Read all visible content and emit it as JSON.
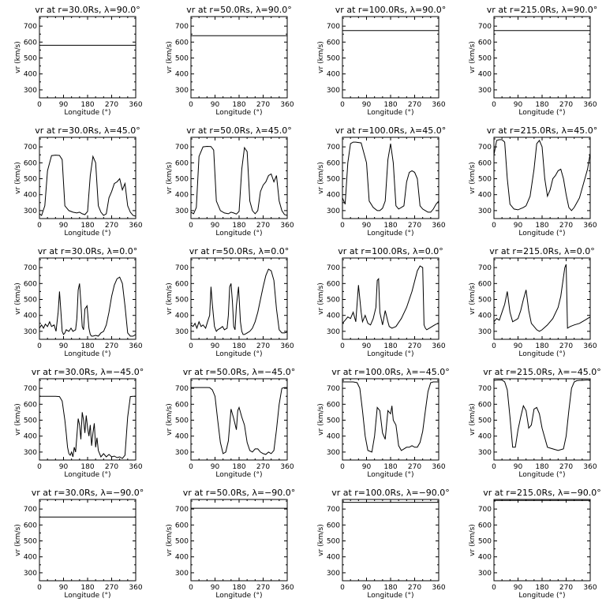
{
  "chart_data": {
    "type": "line",
    "rows": 5,
    "cols": 4,
    "xlabel": "Longitude (°)",
    "ylabel": "vr (km/s)",
    "xlim": [
      0,
      360
    ],
    "xticks": [
      0,
      90,
      180,
      270,
      360
    ],
    "ylim": [
      250,
      760
    ],
    "yticks": [
      300,
      400,
      500,
      600,
      700
    ],
    "panels": [
      {
        "title": "vr at r=30.0Rs, λ=90.0°",
        "x": [
          0,
          360
        ],
        "y": [
          580,
          580
        ]
      },
      {
        "title": "vr at r=50.0Rs, λ=90.0°",
        "x": [
          0,
          360
        ],
        "y": [
          640,
          640
        ]
      },
      {
        "title": "vr at r=100.0Rs, λ=90.0°",
        "x": [
          0,
          360
        ],
        "y": [
          672,
          672
        ]
      },
      {
        "title": "vr at r=215.0Rs, λ=90.0°",
        "x": [
          0,
          360
        ],
        "y": [
          672,
          672
        ]
      },
      {
        "title": "vr at r=30.0Rs, λ=45.0°",
        "x": [
          0,
          8,
          20,
          30,
          45,
          60,
          75,
          85,
          95,
          110,
          125,
          140,
          150,
          160,
          170,
          180,
          190,
          200,
          210,
          220,
          230,
          240,
          250,
          260,
          270,
          280,
          290,
          300,
          310,
          320,
          330,
          340,
          350,
          360
        ],
        "y": [
          280,
          270,
          330,
          550,
          645,
          648,
          646,
          620,
          330,
          300,
          290,
          285,
          290,
          280,
          275,
          295,
          520,
          640,
          600,
          330,
          290,
          270,
          280,
          380,
          420,
          470,
          480,
          500,
          430,
          470,
          330,
          290,
          270,
          265
        ]
      },
      {
        "title": "vr at r=50.0Rs, λ=45.0°",
        "x": [
          0,
          10,
          20,
          30,
          45,
          60,
          75,
          85,
          95,
          110,
          125,
          140,
          150,
          160,
          170,
          180,
          190,
          200,
          210,
          220,
          230,
          240,
          250,
          260,
          270,
          280,
          290,
          300,
          310,
          320,
          330,
          340,
          350,
          360
        ],
        "y": [
          290,
          280,
          320,
          640,
          700,
          703,
          702,
          680,
          360,
          300,
          285,
          280,
          290,
          285,
          278,
          295,
          560,
          695,
          670,
          360,
          300,
          280,
          300,
          420,
          460,
          480,
          520,
          530,
          480,
          520,
          360,
          300,
          275,
          270
        ]
      },
      {
        "title": "vr at r=100.0Rs, λ=45.0°",
        "x": [
          0,
          10,
          20,
          30,
          40,
          50,
          70,
          90,
          100,
          115,
          130,
          140,
          150,
          160,
          170,
          180,
          190,
          200,
          210,
          220,
          230,
          240,
          250,
          260,
          270,
          280,
          290,
          300,
          310,
          320,
          330,
          340,
          350,
          360
        ],
        "y": [
          380,
          340,
          600,
          720,
          730,
          730,
          725,
          600,
          360,
          320,
          300,
          300,
          315,
          360,
          620,
          720,
          600,
          330,
          310,
          320,
          330,
          480,
          540,
          550,
          540,
          500,
          330,
          310,
          300,
          290,
          290,
          310,
          340,
          360
        ]
      },
      {
        "title": "vr at r=215.0Rs, λ=45.0°",
        "x": [
          0,
          10,
          20,
          30,
          40,
          50,
          60,
          75,
          90,
          110,
          120,
          135,
          150,
          160,
          170,
          180,
          190,
          200,
          210,
          220,
          230,
          240,
          250,
          260,
          270,
          280,
          290,
          300,
          310,
          320,
          330,
          340,
          350,
          360
        ],
        "y": [
          650,
          740,
          745,
          745,
          730,
          500,
          340,
          310,
          305,
          320,
          330,
          390,
          560,
          720,
          740,
          700,
          500,
          390,
          430,
          500,
          520,
          550,
          560,
          500,
          400,
          320,
          300,
          320,
          350,
          380,
          440,
          500,
          560,
          660
        ]
      },
      {
        "title": "vr at r=30.0Rs, λ=0.0°",
        "x": [
          0,
          8,
          15,
          22,
          30,
          38,
          45,
          55,
          62,
          70,
          75,
          80,
          85,
          90,
          95,
          100,
          110,
          118,
          125,
          135,
          140,
          145,
          150,
          155,
          160,
          165,
          170,
          178,
          185,
          190,
          195,
          200,
          210,
          220,
          230,
          240,
          250,
          260,
          270,
          280,
          290,
          300,
          310,
          320,
          330,
          340,
          350,
          360
        ],
        "y": [
          320,
          340,
          320,
          345,
          330,
          360,
          330,
          340,
          300,
          420,
          550,
          430,
          300,
          280,
          290,
          310,
          300,
          320,
          300,
          310,
          380,
          560,
          600,
          480,
          330,
          310,
          440,
          460,
          320,
          280,
          270,
          270,
          275,
          270,
          290,
          300,
          340,
          420,
          520,
          590,
          630,
          640,
          600,
          460,
          290,
          270,
          270,
          280
        ]
      },
      {
        "title": "vr at r=50.0Rs, λ=0.0°",
        "x": [
          0,
          8,
          15,
          22,
          30,
          38,
          45,
          55,
          62,
          70,
          75,
          80,
          88,
          95,
          100,
          110,
          118,
          125,
          135,
          140,
          145,
          150,
          155,
          160,
          165,
          170,
          178,
          185,
          190,
          195,
          200,
          210,
          220,
          230,
          240,
          250,
          260,
          270,
          280,
          290,
          300,
          310,
          320,
          330,
          340,
          350,
          360
        ],
        "y": [
          340,
          330,
          350,
          320,
          360,
          330,
          340,
          320,
          360,
          400,
          580,
          470,
          330,
          300,
          310,
          320,
          330,
          310,
          320,
          400,
          580,
          600,
          490,
          330,
          310,
          460,
          580,
          360,
          300,
          280,
          280,
          290,
          300,
          320,
          360,
          420,
          500,
          580,
          650,
          690,
          680,
          620,
          440,
          310,
          290,
          290,
          295
        ]
      },
      {
        "title": "vr at r=100.0Rs, λ=0.0°",
        "x": [
          0,
          10,
          20,
          30,
          40,
          50,
          60,
          70,
          75,
          85,
          95,
          105,
          115,
          125,
          130,
          135,
          140,
          150,
          160,
          170,
          175,
          185,
          200,
          220,
          240,
          260,
          280,
          290,
          300,
          305,
          310,
          315,
          320,
          330,
          340,
          350,
          360
        ],
        "y": [
          350,
          370,
          390,
          380,
          420,
          360,
          590,
          420,
          360,
          400,
          350,
          340,
          380,
          450,
          620,
          630,
          420,
          340,
          430,
          360,
          330,
          320,
          330,
          380,
          450,
          550,
          680,
          710,
          700,
          340,
          320,
          310,
          315,
          325,
          335,
          345,
          350
        ]
      },
      {
        "title": "vr at r=215.0Rs, λ=0.0°",
        "x": [
          0,
          10,
          20,
          30,
          40,
          50,
          60,
          70,
          80,
          90,
          100,
          110,
          120,
          130,
          140,
          150,
          160,
          170,
          180,
          200,
          220,
          240,
          250,
          260,
          265,
          270,
          275,
          285,
          300,
          320,
          340,
          350,
          360
        ],
        "y": [
          360,
          380,
          370,
          420,
          470,
          550,
          420,
          360,
          370,
          380,
          430,
          500,
          560,
          430,
          350,
          330,
          310,
          300,
          310,
          340,
          380,
          450,
          520,
          640,
          700,
          720,
          320,
          330,
          340,
          350,
          370,
          380,
          390
        ]
      },
      {
        "title": "vr at r=30.0Rs, λ=−45.0°",
        "x": [
          0,
          20,
          40,
          60,
          75,
          85,
          95,
          100,
          105,
          110,
          115,
          120,
          125,
          130,
          135,
          140,
          145,
          150,
          155,
          160,
          165,
          170,
          175,
          180,
          185,
          190,
          195,
          200,
          205,
          210,
          215,
          220,
          230,
          240,
          250,
          260,
          270,
          280,
          290,
          300,
          310,
          320,
          330,
          340,
          350,
          360
        ],
        "y": [
          650,
          650,
          650,
          650,
          648,
          620,
          500,
          420,
          330,
          290,
          280,
          300,
          270,
          330,
          300,
          400,
          510,
          470,
          380,
          550,
          500,
          420,
          530,
          450,
          400,
          470,
          340,
          420,
          480,
          330,
          390,
          310,
          270,
          290,
          270,
          285,
          270,
          275,
          265,
          270,
          260,
          280,
          520,
          648,
          650,
          650
        ]
      },
      {
        "title": "vr at r=50.0Rs, λ=−45.0°",
        "x": [
          0,
          20,
          40,
          60,
          70,
          80,
          90,
          100,
          110,
          120,
          130,
          140,
          150,
          160,
          170,
          175,
          180,
          190,
          200,
          210,
          220,
          230,
          240,
          250,
          260,
          270,
          280,
          290,
          300,
          310,
          320,
          330,
          340,
          350,
          360
        ],
        "y": [
          705,
          705,
          705,
          705,
          704,
          690,
          650,
          500,
          360,
          290,
          300,
          370,
          570,
          510,
          440,
          560,
          580,
          520,
          470,
          360,
          310,
          300,
          320,
          320,
          300,
          290,
          285,
          300,
          290,
          310,
          440,
          600,
          700,
          705,
          705
        ]
      },
      {
        "title": "vr at r=100.0Rs, λ=−45.0°",
        "x": [
          0,
          20,
          40,
          55,
          65,
          75,
          85,
          95,
          110,
          120,
          130,
          140,
          150,
          160,
          170,
          180,
          185,
          190,
          200,
          210,
          220,
          230,
          240,
          250,
          260,
          270,
          280,
          290,
          300,
          310,
          320,
          330,
          340,
          350,
          360
        ],
        "y": [
          740,
          740,
          740,
          735,
          700,
          560,
          400,
          310,
          300,
          400,
          580,
          560,
          420,
          380,
          560,
          540,
          590,
          500,
          470,
          340,
          310,
          320,
          330,
          330,
          340,
          330,
          330,
          360,
          430,
          560,
          680,
          735,
          740,
          740,
          740
        ]
      },
      {
        "title": "vr at r=215.0Rs, λ=−45.0°",
        "x": [
          0,
          15,
          30,
          40,
          50,
          60,
          70,
          80,
          90,
          100,
          110,
          120,
          130,
          140,
          150,
          160,
          170,
          180,
          190,
          200,
          220,
          240,
          260,
          270,
          280,
          290,
          300,
          310,
          320,
          330,
          345,
          360
        ],
        "y": [
          750,
          752,
          752,
          740,
          690,
          520,
          330,
          330,
          440,
          520,
          590,
          560,
          450,
          470,
          570,
          580,
          540,
          450,
          390,
          330,
          320,
          310,
          320,
          400,
          560,
          700,
          740,
          748,
          750,
          750,
          752,
          752
        ]
      },
      {
        "title": "vr at r=30.0Rs, λ=−90.0°",
        "x": [
          0,
          360
        ],
        "y": [
          650,
          650
        ]
      },
      {
        "title": "vr at r=50.0Rs, λ=−90.0°",
        "x": [
          0,
          360
        ],
        "y": [
          705,
          705
        ]
      },
      {
        "title": "vr at r=100.0Rs, λ=−90.0°",
        "x": [
          0,
          360
        ],
        "y": [
          742,
          742
        ]
      },
      {
        "title": "vr at r=215.0Rs, λ=−90.0°",
        "x": [
          0,
          360
        ],
        "y": [
          754,
          754
        ]
      }
    ]
  }
}
